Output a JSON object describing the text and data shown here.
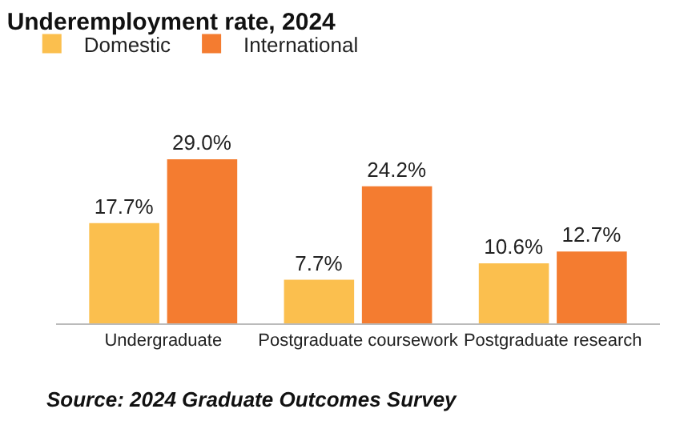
{
  "chart_data": {
    "type": "bar",
    "title": "Underemployment rate, 2024",
    "categories": [
      "Undergraduate",
      "Postgraduate coursework",
      "Postgraduate research"
    ],
    "series": [
      {
        "name": "Domestic",
        "color": "#fbbf4e",
        "values": [
          17.7,
          7.7,
          10.6
        ],
        "value_labels": [
          "17.7%",
          "7.7%",
          "10.6%"
        ]
      },
      {
        "name": "International",
        "color": "#f47c30",
        "values": [
          29.0,
          24.2,
          12.7
        ],
        "value_labels": [
          "29.0%",
          "24.2%",
          "12.7%"
        ]
      }
    ],
    "legend": "top left",
    "annotations": [
      "Source: 2024 Graduate Outcomes Survey"
    ]
  }
}
